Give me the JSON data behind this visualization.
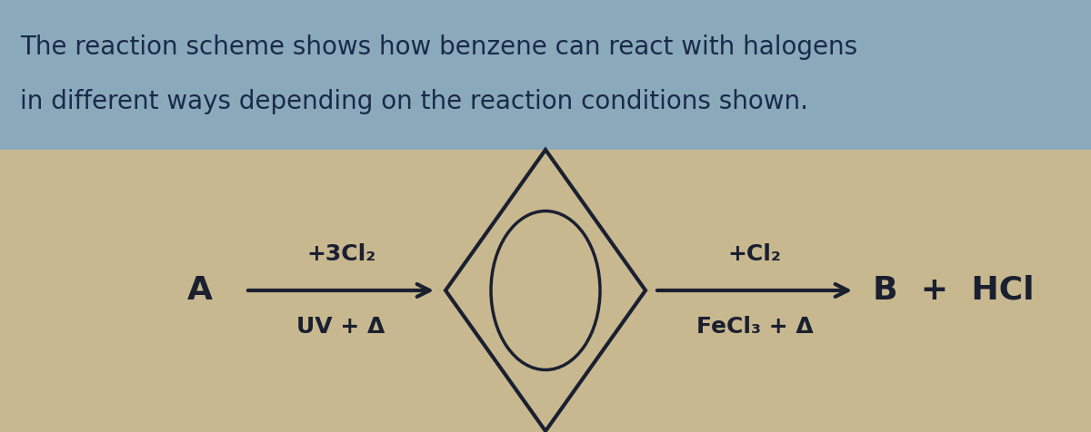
{
  "title_line1": "The reaction scheme shows how benzene can react with halogens",
  "title_line2": "in different ways depending on the reaction conditions shown.",
  "title_fontsize": 20,
  "title_color": "#1a2a4a",
  "bg_top_color": "#7a9ab8",
  "bg_bottom_color": "#c8b898",
  "box_bg_color": "#d4c4a0",
  "text_color": "#1a2030",
  "label_A": "A",
  "label_B": "B",
  "label_right": "B + HCl",
  "left_top": "+3Cl₂",
  "left_bot": "UV + Δ",
  "right_top": "+Cl₂",
  "right_bot": "FeCl₃ + Δ",
  "arrow_color": "#1a2030",
  "benzene_color": "#1a2030",
  "fontsize_reaction": 18,
  "fontsize_labels": 22,
  "figwidth": 12.0,
  "figheight": 4.76,
  "dpi": 100
}
